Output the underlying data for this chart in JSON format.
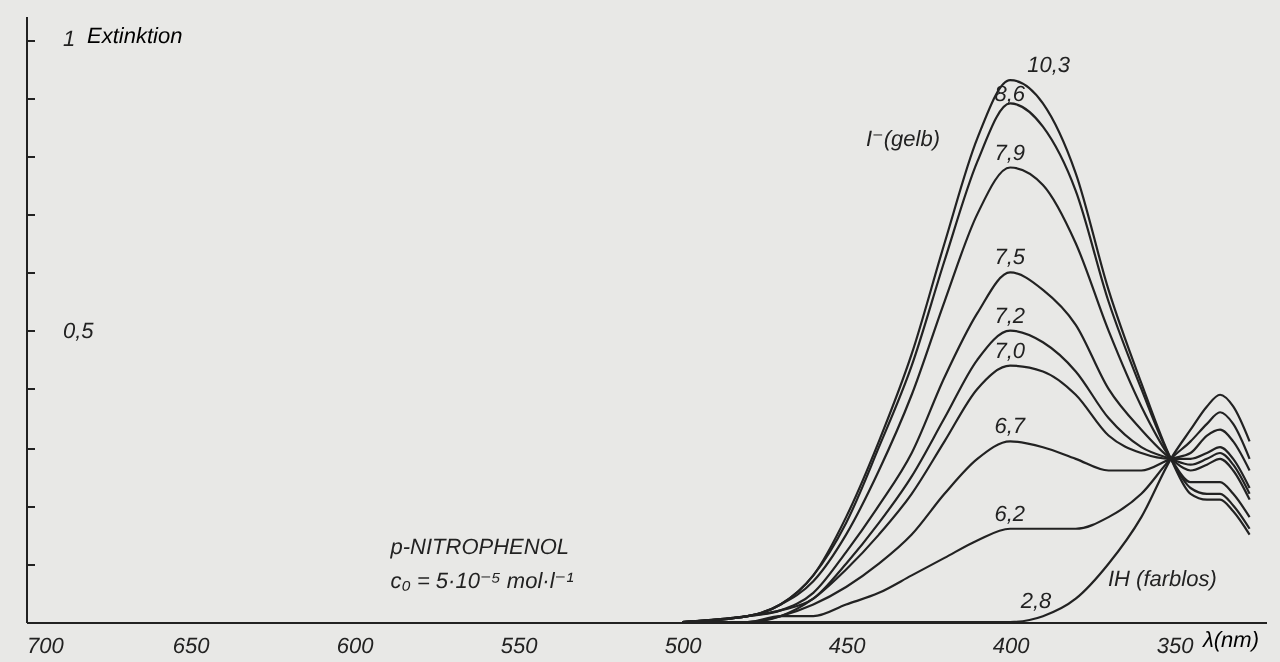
{
  "chart_data": {
    "type": "line",
    "title": "p-NITROPHENOL",
    "subtitle": "c₀ = 5·10⁻⁵ mol·l⁻¹",
    "xlabel": "λ(nm)",
    "ylabel": "Extinktion",
    "x": [
      500,
      480,
      470,
      460,
      450,
      440,
      430,
      420,
      410,
      400,
      390,
      380,
      370,
      360,
      351,
      345,
      340,
      336,
      332,
      327
    ],
    "series": [
      {
        "color": "#222222",
        "values": [
          0,
          0.01,
          0.03,
          0.08,
          0.18,
          0.31,
          0.46,
          0.65,
          0.83,
          0.93,
          0.89,
          0.77,
          0.57,
          0.41,
          0.28,
          0.22,
          0.21,
          0.21,
          0.19,
          0.15
        ]
      },
      {
        "color": "#222222",
        "values": [
          0,
          0.01,
          0.03,
          0.08,
          0.17,
          0.3,
          0.44,
          0.62,
          0.79,
          0.89,
          0.85,
          0.74,
          0.55,
          0.4,
          0.28,
          0.23,
          0.22,
          0.22,
          0.2,
          0.16
        ]
      },
      {
        "color": "#222222",
        "values": [
          0,
          0.01,
          0.03,
          0.07,
          0.15,
          0.26,
          0.39,
          0.55,
          0.7,
          0.78,
          0.75,
          0.65,
          0.5,
          0.37,
          0.28,
          0.24,
          0.24,
          0.24,
          0.22,
          0.18
        ]
      },
      {
        "color": "#222222",
        "values": [
          0,
          0.01,
          0.02,
          0.05,
          0.12,
          0.2,
          0.29,
          0.42,
          0.53,
          0.6,
          0.57,
          0.51,
          0.4,
          0.33,
          0.28,
          0.26,
          0.27,
          0.28,
          0.26,
          0.21
        ]
      },
      {
        "color": "#222222",
        "values": [
          0,
          0.01,
          0.02,
          0.04,
          0.1,
          0.17,
          0.25,
          0.35,
          0.45,
          0.5,
          0.48,
          0.43,
          0.35,
          0.3,
          0.28,
          0.27,
          0.28,
          0.29,
          0.27,
          0.22
        ]
      },
      {
        "color": "#222222",
        "values": [
          0,
          0,
          0.01,
          0.04,
          0.09,
          0.15,
          0.22,
          0.31,
          0.4,
          0.44,
          0.43,
          0.39,
          0.32,
          0.29,
          0.28,
          0.28,
          0.29,
          0.3,
          0.28,
          0.23
        ]
      },
      {
        "color": "#222222",
        "values": [
          0,
          0,
          0.01,
          0.03,
          0.06,
          0.1,
          0.15,
          0.22,
          0.28,
          0.31,
          0.3,
          0.28,
          0.26,
          0.26,
          0.28,
          0.29,
          0.32,
          0.33,
          0.31,
          0.26
        ]
      },
      {
        "color": "#222222",
        "values": [
          0,
          0,
          0.01,
          0.01,
          0.03,
          0.05,
          0.08,
          0.11,
          0.14,
          0.16,
          0.16,
          0.16,
          0.18,
          0.22,
          0.28,
          0.31,
          0.34,
          0.36,
          0.34,
          0.28
        ]
      },
      {
        "color": "#222222",
        "values": [
          0,
          0,
          0,
          0,
          0,
          0,
          0,
          0,
          0,
          0,
          0.01,
          0.04,
          0.1,
          0.18,
          0.28,
          0.33,
          0.37,
          0.39,
          0.37,
          0.31
        ]
      }
    ],
    "annotations": [
      {
        "text": "10,3",
        "x": 396,
        "y": 0.93
      },
      {
        "text": "8,6",
        "x": 406,
        "y": 0.88
      },
      {
        "text": "7,9",
        "x": 406,
        "y": 0.78
      },
      {
        "text": "7,5",
        "x": 406,
        "y": 0.6
      },
      {
        "text": "7,2",
        "x": 406,
        "y": 0.5
      },
      {
        "text": "7,0",
        "x": 406,
        "y": 0.44
      },
      {
        "text": "6,7",
        "x": 406,
        "y": 0.31
      },
      {
        "text": "6,2",
        "x": 406,
        "y": 0.16
      },
      {
        "text": "2,8",
        "x": 398,
        "y": 0.01
      },
      "IH (farblos)",
      "I⁻(gelb)"
    ],
    "xlim": [
      700,
      322
    ],
    "xticks": [
      700,
      650,
      600,
      550,
      500,
      450,
      400,
      350
    ],
    "ylim": [
      0,
      1.04
    ],
    "yticks": [
      {
        "value": 0.1,
        "label": null
      },
      {
        "value": 0.2,
        "label": null
      },
      {
        "value": 0.3,
        "label": null
      },
      {
        "value": 0.4,
        "label": null
      },
      {
        "value": 0.5,
        "label": "0,5"
      },
      {
        "value": 0.6,
        "label": null
      },
      {
        "value": 0.7,
        "label": null
      },
      {
        "value": 0.8,
        "label": null
      },
      {
        "value": 0.9,
        "label": null
      },
      1
    ],
    "grid": false,
    "legend": false,
    "marker": "none",
    "line_style": "solid"
  }
}
